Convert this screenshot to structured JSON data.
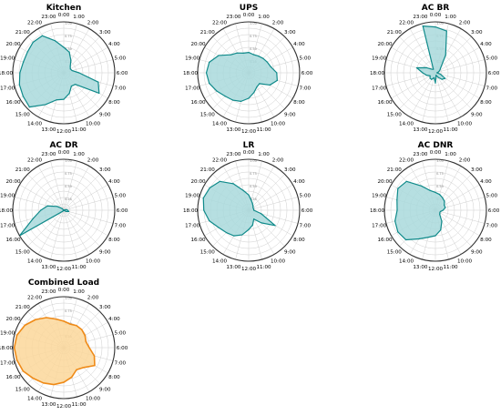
{
  "chart_data": [
    {
      "type": "radar",
      "title": "Kitchen",
      "theta_labels": [
        "0:00",
        "1:00",
        "2:00",
        "3:00",
        "4:00",
        "5:00",
        "6:00",
        "7:00",
        "8:00",
        "9:00",
        "10:00",
        "11:00",
        "12:00",
        "13:00",
        "14:00",
        "15:00",
        "16:00",
        "17:00",
        "18:00",
        "19:00",
        "20:00",
        "21:00",
        "22:00",
        "23:00"
      ],
      "rlim": [
        0,
        1
      ],
      "grid": true,
      "color": "#0f8a8a",
      "fill": "#a9d9dc",
      "series": [
        {
          "values": [
            0.5,
            0.42,
            0.28,
            0.18,
            0.15,
            0.17,
            0.3,
            0.7,
            0.8,
            0.32,
            0.3,
            0.42,
            0.52,
            0.55,
            0.72,
            0.95,
            0.92,
            0.9,
            0.86,
            0.82,
            0.82,
            0.85,
            0.84,
            0.65
          ]
        }
      ]
    },
    {
      "type": "radar",
      "title": "UPS",
      "theta_labels": [
        "0:00",
        "1:00",
        "2:00",
        "3:00",
        "4:00",
        "5:00",
        "6:00",
        "7:00",
        "8:00",
        "9:00",
        "10:00",
        "11:00",
        "12:00",
        "13:00",
        "14:00",
        "15:00",
        "16:00",
        "17:00",
        "18:00",
        "19:00",
        "20:00",
        "21:00",
        "22:00",
        "23:00"
      ],
      "rlim": [
        0,
        1
      ],
      "grid": true,
      "color": "#0f8a8a",
      "fill": "#a9d9dc",
      "series": [
        {
          "values": [
            0.4,
            0.37,
            0.38,
            0.4,
            0.42,
            0.45,
            0.55,
            0.58,
            0.48,
            0.3,
            0.32,
            0.4,
            0.5,
            0.58,
            0.62,
            0.65,
            0.72,
            0.8,
            0.83,
            0.8,
            0.68,
            0.5,
            0.45,
            0.4
          ]
        }
      ]
    },
    {
      "type": "radar",
      "title": "AC BR",
      "theta_labels": [
        "0:00",
        "1:00",
        "2:00",
        "3:00",
        "4:00",
        "5:00",
        "6:00",
        "7:00",
        "8:00",
        "9:00",
        "10:00",
        "11:00",
        "12:00",
        "13:00",
        "14:00",
        "15:00",
        "16:00",
        "17:00",
        "18:00",
        "19:00",
        "20:00",
        "21:00",
        "22:00",
        "23:00"
      ],
      "rlim": [
        0,
        1
      ],
      "grid": true,
      "color": "#0f8a8a",
      "fill": "#a9d9dc",
      "series": [
        {
          "values": [
            0.9,
            0.85,
            0.4,
            0.15,
            0.1,
            0.06,
            0.03,
            0.1,
            0.22,
            0.18,
            0.1,
            0.05,
            0.2,
            0.1,
            0.15,
            0.15,
            0.12,
            0.18,
            0.25,
            0.38,
            0.2,
            0.1,
            0.08,
            0.95
          ]
        }
      ]
    },
    {
      "type": "radar",
      "title": "AC DR",
      "theta_labels": [
        "0:00",
        "1:00",
        "2:00",
        "3:00",
        "4:00",
        "5:00",
        "6:00",
        "7:00",
        "8:00",
        "9:00",
        "10:00",
        "11:00",
        "12:00",
        "13:00",
        "14:00",
        "15:00",
        "16:00",
        "17:00",
        "18:00",
        "19:00",
        "20:00",
        "21:00",
        "22:00",
        "23:00"
      ],
      "rlim": [
        0,
        1
      ],
      "grid": true,
      "color": "#0f8a8a",
      "fill": "#a9d9dc",
      "series": [
        {
          "values": [
            0.0,
            0.0,
            0.0,
            0.0,
            0.0,
            0.05,
            0.08,
            0.1,
            0.05,
            0.0,
            0.0,
            0.0,
            0.0,
            0.0,
            0.0,
            0.03,
            1.0,
            0.62,
            0.45,
            0.33,
            0.15,
            0.05,
            0.0,
            0.0
          ]
        }
      ]
    },
    {
      "type": "radar",
      "title": "LR",
      "theta_labels": [
        "0:00",
        "1:00",
        "2:00",
        "3:00",
        "4:00",
        "5:00",
        "6:00",
        "7:00",
        "8:00",
        "9:00",
        "10:00",
        "11:00",
        "12:00",
        "13:00",
        "14:00",
        "15:00",
        "16:00",
        "17:00",
        "18:00",
        "19:00",
        "20:00",
        "21:00",
        "22:00",
        "23:00"
      ],
      "rlim": [
        0,
        1
      ],
      "grid": true,
      "color": "#0f8a8a",
      "fill": "#a9d9dc",
      "series": [
        {
          "values": [
            0.3,
            0.2,
            0.15,
            0.12,
            0.1,
            0.1,
            0.1,
            0.25,
            0.6,
            0.35,
            0.2,
            0.3,
            0.38,
            0.5,
            0.58,
            0.62,
            0.68,
            0.8,
            0.88,
            0.92,
            0.88,
            0.8,
            0.6,
            0.4
          ]
        }
      ]
    },
    {
      "type": "radar",
      "title": "AC DNR",
      "theta_labels": [
        "0:00",
        "1:00",
        "2:00",
        "3:00",
        "4:00",
        "5:00",
        "6:00",
        "7:00",
        "8:00",
        "9:00",
        "10:00",
        "11:00",
        "12:00",
        "13:00",
        "14:00",
        "15:00",
        "16:00",
        "17:00",
        "18:00",
        "19:00",
        "20:00",
        "21:00",
        "22:00",
        "23:00"
      ],
      "rlim": [
        0,
        1
      ],
      "grid": true,
      "color": "#0f8a8a",
      "fill": "#a9d9dc",
      "series": [
        {
          "values": [
            0.35,
            0.32,
            0.28,
            0.25,
            0.2,
            0.2,
            0.15,
            0.1,
            0.1,
            0.12,
            0.25,
            0.4,
            0.5,
            0.55,
            0.65,
            0.82,
            0.85,
            0.82,
            0.75,
            0.78,
            0.85,
            0.8,
            0.55,
            0.4
          ]
        }
      ]
    },
    {
      "type": "radar",
      "title": "Combined Load",
      "theta_labels": [
        "0:00",
        "1:00",
        "2:00",
        "3:00",
        "4:00",
        "5:00",
        "6:00",
        "7:00",
        "8:00",
        "9:00",
        "10:00",
        "11:00",
        "12:00",
        "13:00",
        "14:00",
        "15:00",
        "16:00",
        "17:00",
        "18:00",
        "19:00",
        "20:00",
        "21:00",
        "22:00",
        "23:00"
      ],
      "rlim": [
        0,
        1
      ],
      "grid": true,
      "color": "#ef8a17",
      "fill": "#fbd79a",
      "series": [
        {
          "values": [
            0.52,
            0.48,
            0.5,
            0.5,
            0.48,
            0.45,
            0.5,
            0.62,
            0.7,
            0.55,
            0.5,
            0.6,
            0.68,
            0.75,
            0.8,
            0.85,
            0.92,
            0.95,
            0.97,
            0.95,
            0.88,
            0.78,
            0.68,
            0.58
          ]
        }
      ]
    }
  ]
}
